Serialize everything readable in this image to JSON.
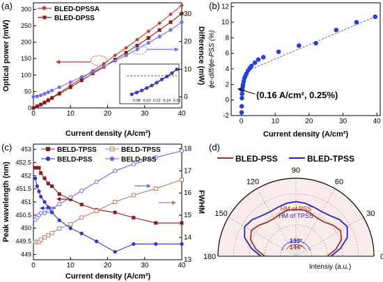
{
  "chart_data": [
    {
      "panel_label": "(a)",
      "type": "line",
      "xlabel": "Current density (A/cm²)",
      "ylabel": "Optical power (mW)",
      "y2label": "Difference (mW)",
      "xlim": [
        0,
        40
      ],
      "ylim": [
        0,
        320
      ],
      "y2lim": [
        -4,
        34
      ],
      "xticks": [
        0,
        10,
        20,
        30,
        40
      ],
      "yticks": [
        0,
        50,
        100,
        150,
        200,
        250,
        300
      ],
      "y2ticks": [
        0,
        10,
        20,
        30
      ],
      "series": [
        {
          "name": "BLED-DPSSA",
          "color": "#c0392b",
          "marker": "diamond",
          "x": [
            0,
            1,
            2,
            3,
            4,
            5,
            7,
            10,
            13,
            16,
            19,
            22,
            25,
            28,
            31,
            34,
            37,
            40
          ],
          "y": [
            0,
            5,
            11,
            18,
            25,
            32,
            46,
            68,
            90,
            113,
            135,
            160,
            183,
            208,
            233,
            258,
            285,
            312
          ]
        },
        {
          "name": "BLED-DPSS",
          "color": "#8b1a1a",
          "marker": "square",
          "x": [
            0,
            1,
            2,
            3,
            4,
            5,
            7,
            10,
            13,
            16,
            19,
            22,
            25,
            28,
            31,
            34,
            37,
            40
          ],
          "y": [
            0,
            5,
            10,
            16,
            23,
            30,
            43,
            63,
            84,
            105,
            125,
            147,
            168,
            190,
            213,
            237,
            261,
            287
          ]
        },
        {
          "name": "Difference",
          "axis": "right",
          "color": "#7070ee",
          "marker": "circle",
          "x": [
            0,
            1,
            2,
            3,
            4,
            5,
            7,
            10,
            13,
            16,
            19,
            22,
            25,
            28,
            31,
            34,
            37,
            40
          ],
          "y": [
            0,
            0.2,
            0.6,
            1.1,
            1.7,
            2.3,
            3.5,
            5.3,
            7.2,
            9.0,
            11,
            13,
            15,
            17.2,
            19.5,
            21.8,
            24.2,
            27
          ]
        }
      ],
      "inset": {
        "xlim": [
          0.06,
          0.16
        ],
        "ylim": [
          -9,
          4
        ],
        "xticks": [
          "0.08",
          "0.10",
          "0.12",
          "0.14",
          "0.16"
        ],
        "x": [
          0.07,
          0.08,
          0.09,
          0.1,
          0.11,
          0.12,
          0.13,
          0.14,
          0.15,
          0.16
        ],
        "y": [
          -8.2,
          -7.4,
          -6.5,
          -5.4,
          -4.3,
          -3.0,
          -1.6,
          -0.3,
          1.2,
          2.9
        ]
      }
    },
    {
      "panel_label": "(b)",
      "type": "scatter",
      "xlabel": "Current density (A/cm²)",
      "ylabel": "ϕe-diff/ϕe-PSS (%)",
      "xlim": [
        -3,
        41
      ],
      "ylim": [
        -2,
        12.5
      ],
      "xticks": [
        0,
        10,
        20,
        30,
        40
      ],
      "yticks": [
        -2,
        0,
        2,
        4,
        6,
        8,
        10,
        12
      ],
      "annotation": "(0.16 A/cm², 0.25%)",
      "x": [
        0.07,
        0.1,
        0.16,
        0.2,
        0.3,
        0.4,
        0.5,
        0.7,
        0.9,
        1.2,
        1.5,
        2,
        2.5,
        3,
        4,
        5,
        6.5,
        11,
        17,
        22,
        28,
        34,
        39.5
      ],
      "y": [
        -1.6,
        -0.8,
        0.25,
        0.8,
        1.3,
        1.7,
        2.0,
        2.4,
        2.8,
        3.1,
        3.4,
        3.8,
        4.1,
        4.4,
        4.8,
        5.2,
        5.5,
        6.2,
        7.0,
        7.3,
        9.0,
        10.0,
        10.7
      ]
    },
    {
      "panel_label": "(c)",
      "type": "line",
      "xlabel": "Current density (A/cm²)",
      "ylabel": "Peak wavelength (nm)",
      "y2label": "FWHM",
      "xlim": [
        0,
        40
      ],
      "ylim": [
        448.8,
        453.2
      ],
      "y2lim": [
        13,
        18.2
      ],
      "xticks": [
        0,
        10,
        20,
        30,
        40
      ],
      "yticks": [
        449,
        449.5,
        450,
        450.5,
        451,
        451.5,
        452,
        452.5,
        453
      ],
      "y2ticks": [
        13,
        14,
        15,
        16,
        17,
        18
      ],
      "series": [
        {
          "name": "BELD-TPSS",
          "axis": "left",
          "color": "#8b1a1a",
          "marker": "square",
          "x": [
            0.5,
            1,
            1.5,
            2,
            3,
            4,
            5,
            7,
            10,
            13,
            17,
            22,
            27,
            33,
            40
          ],
          "y": [
            452.3,
            452.3,
            452.3,
            452.1,
            451.9,
            451.7,
            451.6,
            451.3,
            451.1,
            450.9,
            450.7,
            450.6,
            450.4,
            450.2,
            450.2
          ]
        },
        {
          "name": "BELD-TPSS",
          "axis": "right",
          "color": "#b77a6a",
          "marker": "square-open",
          "x": [
            0.5,
            1,
            1.5,
            2,
            3,
            4,
            5,
            7,
            10,
            13,
            17,
            22,
            27,
            33,
            40
          ],
          "y": [
            13.8,
            13.8,
            13.8,
            13.9,
            14.0,
            14.1,
            14.2,
            14.4,
            14.6,
            14.9,
            15.2,
            15.6,
            15.9,
            16.2,
            16.6
          ]
        },
        {
          "name": "BELD-PSS",
          "axis": "left",
          "color": "#3333cc",
          "marker": "circle",
          "x": [
            0.5,
            1,
            1.5,
            2,
            3,
            4,
            5,
            7,
            10,
            13,
            17,
            22,
            27,
            33,
            40
          ],
          "y": [
            451.9,
            451.6,
            451.4,
            451.2,
            451.0,
            450.8,
            450.6,
            450.3,
            450.0,
            449.8,
            449.5,
            449.1,
            449.4,
            449.4,
            449.4
          ]
        },
        {
          "name": "BELD-PSS",
          "axis": "right",
          "color": "#6a6aee",
          "marker": "circle-open",
          "x": [
            0.5,
            1,
            1.5,
            2,
            3,
            4,
            5,
            7,
            10,
            13,
            17,
            22,
            27,
            33,
            40
          ],
          "y": [
            14.8,
            14.9,
            15.0,
            15.1,
            15.1,
            15.2,
            15.3,
            15.5,
            15.8,
            16.1,
            16.5,
            17.0,
            17.3,
            17.6,
            17.9
          ]
        }
      ]
    },
    {
      "panel_label": "(d)",
      "type": "polar",
      "xlabel": "Intensiy (a.u.)",
      "angle_ticks": [
        "0",
        "30",
        "60",
        "90",
        "120",
        "150",
        "180"
      ],
      "series": [
        {
          "name": "BLED-PSS",
          "color": "#a0302a",
          "angles": [
            0,
            10,
            20,
            30,
            40,
            50,
            60,
            70,
            80,
            90,
            100,
            110,
            120,
            130,
            140,
            150,
            160,
            170,
            180
          ],
          "r": [
            0.4,
            0.52,
            0.62,
            0.66,
            0.62,
            0.57,
            0.56,
            0.58,
            0.6,
            0.6,
            0.6,
            0.58,
            0.56,
            0.57,
            0.62,
            0.66,
            0.62,
            0.52,
            0.4
          ]
        },
        {
          "name": "BLED-TPSS",
          "color": "#2222cc",
          "angles": [
            0,
            10,
            20,
            30,
            40,
            50,
            60,
            70,
            80,
            90,
            100,
            110,
            120,
            130,
            140,
            150,
            160,
            170,
            180
          ],
          "r": [
            0.45,
            0.58,
            0.7,
            0.76,
            0.73,
            0.68,
            0.66,
            0.67,
            0.69,
            0.7,
            0.69,
            0.67,
            0.66,
            0.68,
            0.73,
            0.76,
            0.7,
            0.58,
            0.45
          ]
        }
      ],
      "annotations": [
        "HM of PSS",
        "HM of TPSS",
        "133°",
        "144°"
      ]
    }
  ]
}
